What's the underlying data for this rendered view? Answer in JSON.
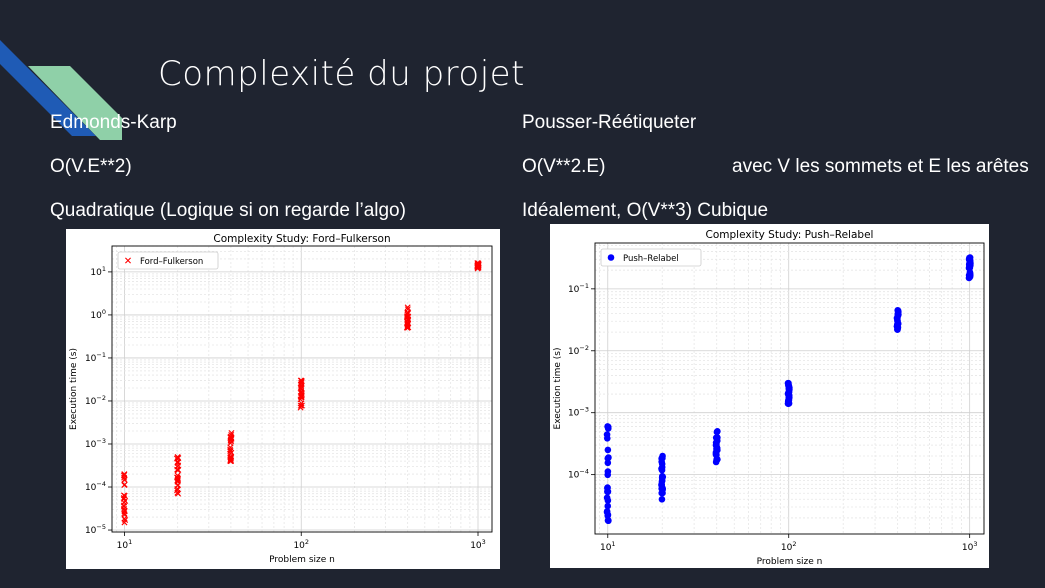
{
  "slide": {
    "title": "Complexité du projet",
    "left": {
      "algo": "Edmonds-Karp",
      "complexity": "O(V.E**2)",
      "comment": "Quadratique (Logique si on regarde l’algo)"
    },
    "right": {
      "algo": "Pousser-Réétiqueter",
      "complexity": "O(V**2.E)",
      "note": "avec V les sommets et E les arêtes",
      "comment": "Idéalement, O(V**3) Cubique"
    }
  },
  "colors": {
    "background": "#1f2430",
    "accent_blue": "#1f5bb5",
    "accent_green": "#8fd0a8",
    "ford_marker": "#ff0000",
    "push_marker": "#0000ff"
  },
  "chart_data": [
    {
      "type": "scatter",
      "title": "Complexity Study: Ford–Fulkerson",
      "xlabel": "Problem size n",
      "ylabel": "Execution time (s)",
      "xscale": "log",
      "yscale": "log",
      "xlim": [
        8.5,
        1200
      ],
      "ylim": [
        9e-06,
        40
      ],
      "grid": true,
      "legend": "top-left",
      "xticks": [
        10,
        100,
        1000
      ],
      "xtick_labels": [
        "10^1",
        "10^2",
        "10^3"
      ],
      "yticks": [
        1e-05,
        0.0001,
        0.001,
        0.01,
        0.1,
        1,
        10
      ],
      "ytick_labels": [
        "10^-5",
        "10^-4",
        "10^-3",
        "10^-2",
        "10^-1",
        "10^0",
        "10^1"
      ],
      "series": [
        {
          "name": "Ford–Fulkerson",
          "marker": "x",
          "color": "#ff0000",
          "groups": [
            {
              "x": 10,
              "ymin": 1.5e-05,
              "ymax": 0.0002
            },
            {
              "x": 20,
              "ymin": 7e-05,
              "ymax": 0.0005
            },
            {
              "x": 40,
              "ymin": 0.0004,
              "ymax": 0.0018
            },
            {
              "x": 100,
              "ymin": 0.007,
              "ymax": 0.03
            },
            {
              "x": 400,
              "ymin": 0.5,
              "ymax": 1.5
            },
            {
              "x": 1000,
              "ymin": 12,
              "ymax": 16
            }
          ]
        }
      ]
    },
    {
      "type": "scatter",
      "title": "Complexity Study: Push–Relabel",
      "xlabel": "Problem size n",
      "ylabel": "Execution time (s)",
      "xscale": "log",
      "yscale": "log",
      "xlim": [
        8.5,
        1200
      ],
      "ylim": [
        1.1e-05,
        0.55
      ],
      "grid": true,
      "legend": "top-left",
      "xticks": [
        10,
        100,
        1000
      ],
      "xtick_labels": [
        "10^1",
        "10^2",
        "10^3"
      ],
      "yticks": [
        0.0001,
        0.001,
        0.01,
        0.1
      ],
      "ytick_labels": [
        "10^-4",
        "10^-3",
        "10^-2",
        "10^-1"
      ],
      "series": [
        {
          "name": "Push–Relabel",
          "marker": "o",
          "color": "#0000ff",
          "groups": [
            {
              "x": 10,
              "ymin": 1.8e-05,
              "ymax": 0.0006
            },
            {
              "x": 20,
              "ymin": 4e-05,
              "ymax": 0.0002
            },
            {
              "x": 40,
              "ymin": 0.00016,
              "ymax": 0.0005
            },
            {
              "x": 100,
              "ymin": 0.0014,
              "ymax": 0.003
            },
            {
              "x": 400,
              "ymin": 0.022,
              "ymax": 0.045
            },
            {
              "x": 1000,
              "ymin": 0.15,
              "ymax": 0.32
            }
          ]
        }
      ]
    }
  ]
}
